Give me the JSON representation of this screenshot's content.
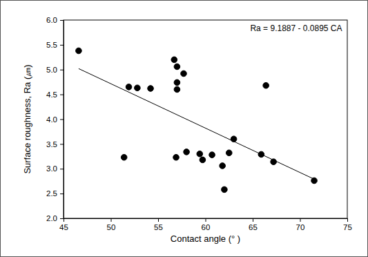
{
  "chart_data": {
    "type": "scatter",
    "x_label": "Contact angle (° )",
    "y_label": "Surface roughness, Ra (㎛)",
    "annotation": "Ra = 9.1887 - 0.0895 CA",
    "xlim": [
      45,
      75
    ],
    "xticks": [
      45,
      50,
      55,
      60,
      65,
      70,
      75
    ],
    "ylim": [
      2,
      6
    ],
    "yticks": [
      {
        "value": 2,
        "label": "2.0"
      },
      2.5,
      {
        "value": 3,
        "label": "3.0"
      },
      3.5,
      {
        "value": 4,
        "label": "4.0"
      },
      4.5,
      {
        "value": 5,
        "label": "5.0"
      },
      5.5,
      {
        "value": 6,
        "label": "6.0"
      }
    ],
    "grid": false,
    "series": [
      {
        "type": "scatter",
        "marker": "circle",
        "color": "#000000",
        "x": [
          46.6,
          51.4,
          51.9,
          52.8,
          54.2,
          56.7,
          57.0,
          57.0,
          57.0,
          57.7,
          56.9,
          58.0,
          59.4,
          59.7,
          60.7,
          61.8,
          62.0,
          62.5,
          63.0,
          65.9,
          66.4,
          67.2,
          71.5
        ],
        "values": [
          5.38,
          3.23,
          4.65,
          4.63,
          4.62,
          5.2,
          5.06,
          4.74,
          4.6,
          4.92,
          3.23,
          3.34,
          3.3,
          3.18,
          3.28,
          3.06,
          2.58,
          3.32,
          3.6,
          3.29,
          4.68,
          3.14,
          2.76
        ]
      },
      {
        "type": "line",
        "line_style": "solid",
        "color": "#000000",
        "x": [
          46.6,
          71.5
        ],
        "values": [
          5.02,
          2.79
        ]
      }
    ]
  }
}
